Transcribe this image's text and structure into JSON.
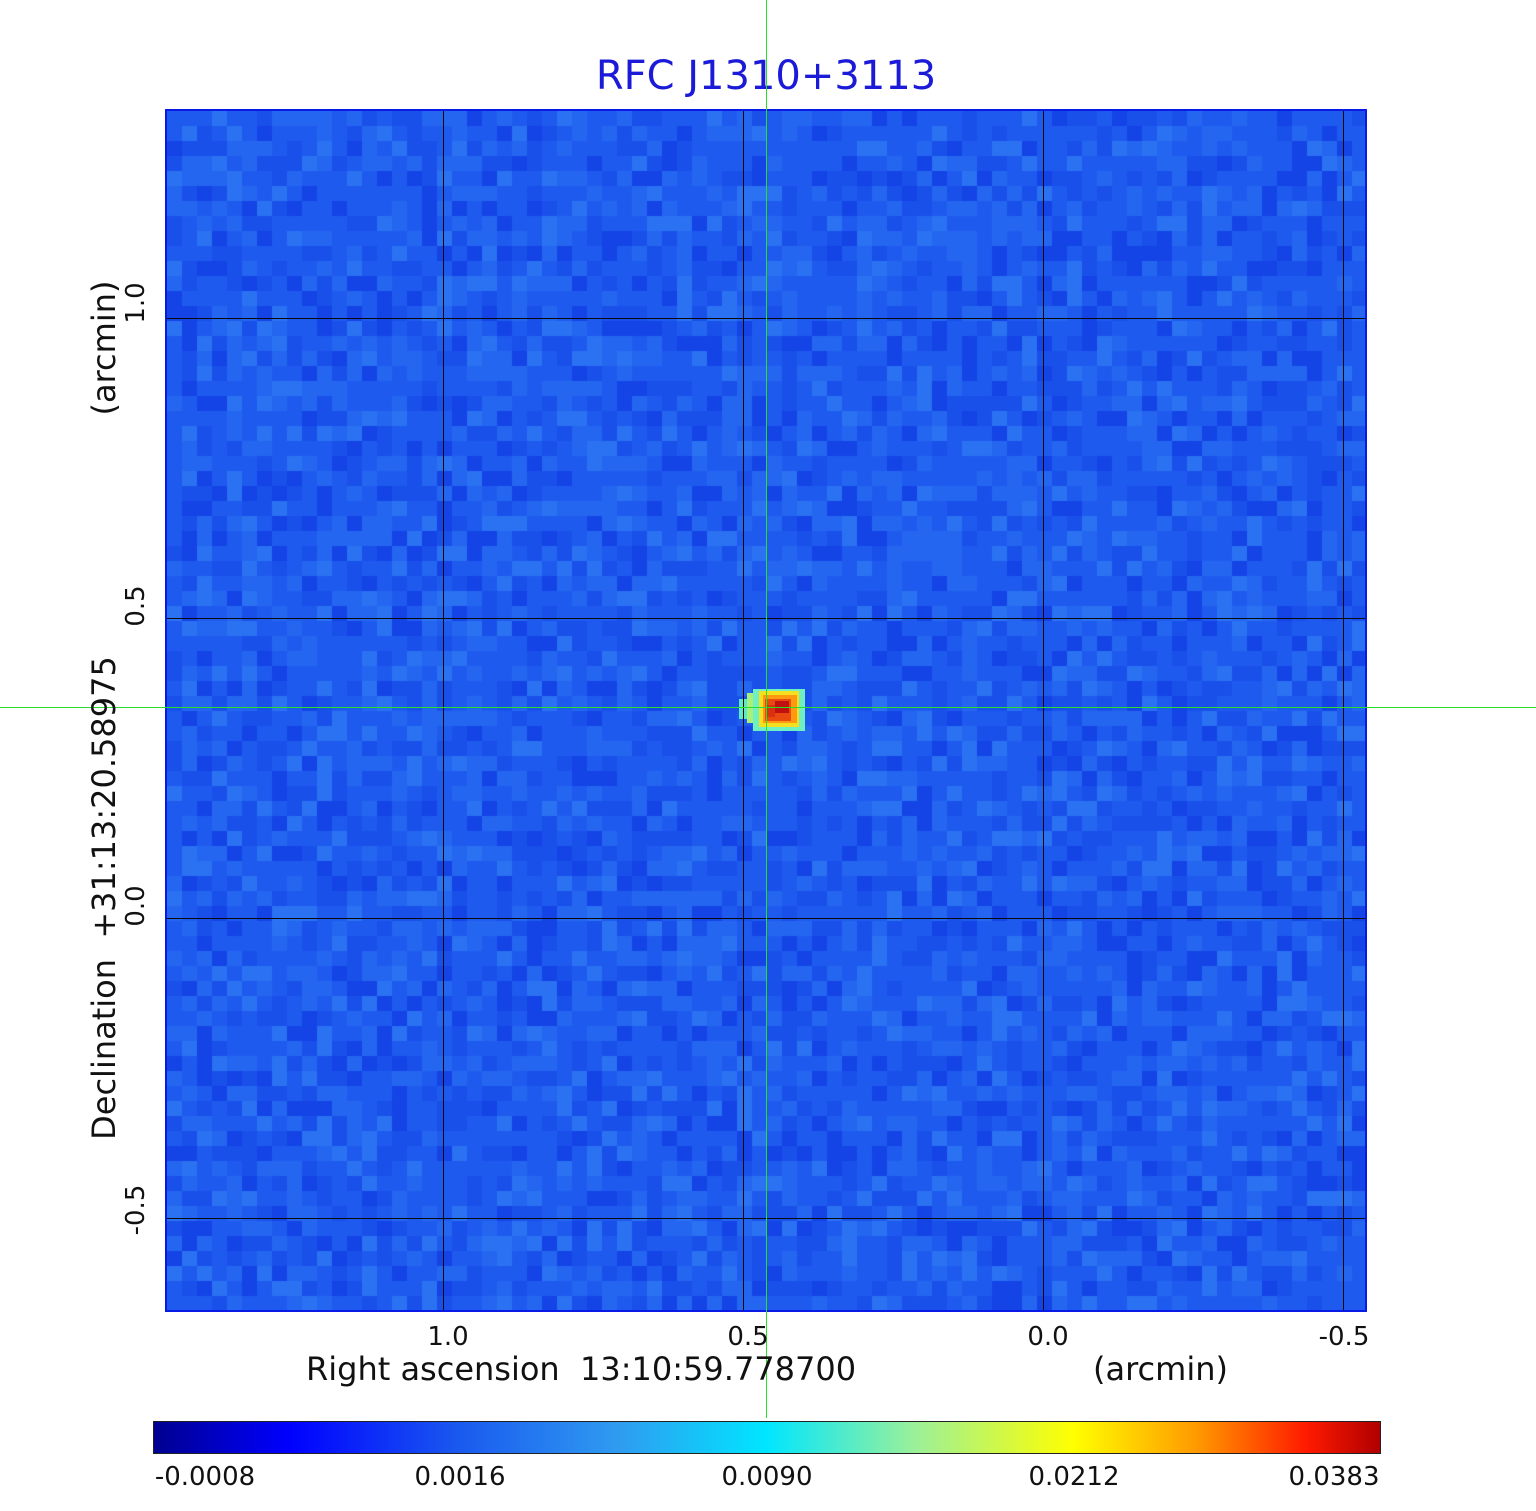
{
  "title": "RFC J1310+3113",
  "x_axis": {
    "label": "Right ascension  13:10:59.778700",
    "unit": "(arcmin)",
    "ticks": [
      "1.0",
      "0.5",
      "0.0",
      "-0.5"
    ]
  },
  "y_axis": {
    "label": "Declination  +31:13:20.58975",
    "unit": "(arcmin)",
    "ticks": [
      "1.0",
      "0.5",
      "0.0",
      "-0.5"
    ]
  },
  "colorbar": {
    "ticks": [
      "-0.0008",
      "0.0016",
      "0.0090",
      "0.0212",
      "0.0383"
    ],
    "colormap": "jet"
  },
  "colors": {
    "title": "#1a1ad8",
    "background_map": "#1f5aee",
    "crosshair": "#2adf2a",
    "grid": "#0a0a0a"
  },
  "source": {
    "ra_offset_arcmin": 0.46,
    "dec_offset_arcmin": 0.35
  }
}
